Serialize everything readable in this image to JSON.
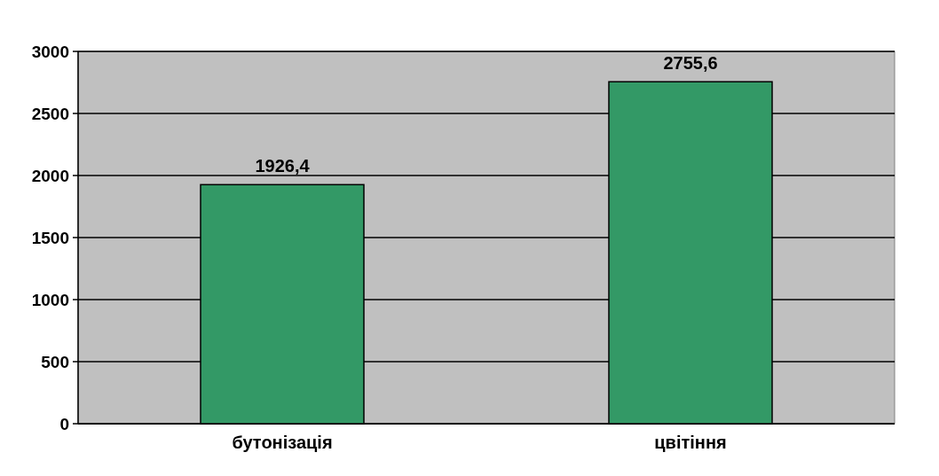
{
  "chart_data": {
    "type": "bar",
    "categories": [
      "бутонізація",
      "цвітіння"
    ],
    "values": [
      1926.4,
      2755.6
    ],
    "color": "#339966",
    "value_labels": [
      "1926,4",
      "2755,6"
    ],
    "ylim": [
      0,
      3000
    ],
    "yticks": [
      0,
      500,
      1000,
      1500,
      2000,
      2500,
      3000
    ],
    "grid": "y"
  }
}
